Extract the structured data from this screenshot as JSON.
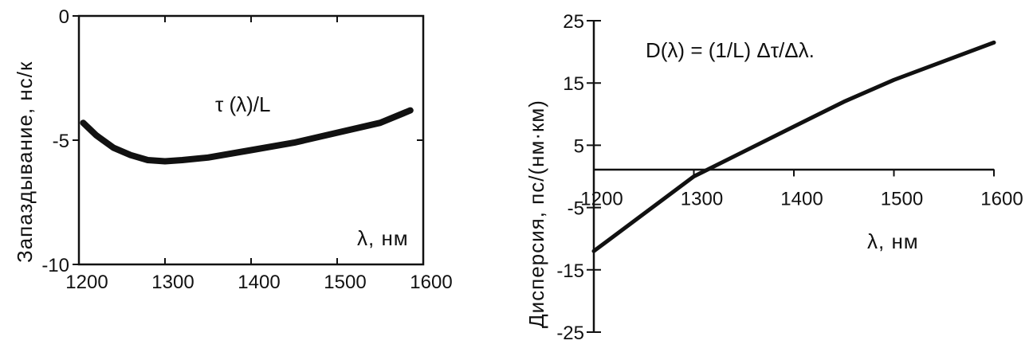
{
  "chart_data": [
    {
      "type": "line",
      "title": "",
      "xlabel": "λ, нм",
      "ylabel": "Запаздывание, нс/к",
      "xlim": [
        1200,
        1600
      ],
      "ylim": [
        -10,
        0
      ],
      "x_ticks": [
        1200,
        1300,
        1400,
        1500,
        1600
      ],
      "y_ticks": [
        0,
        -5,
        -10
      ],
      "grid": false,
      "annotation": "τ (λ)/L",
      "series": [
        {
          "x": [
            1205,
            1220,
            1240,
            1260,
            1280,
            1300,
            1320,
            1350,
            1400,
            1450,
            1500,
            1550,
            1585
          ],
          "y": [
            -4.3,
            -4.8,
            -5.3,
            -5.6,
            -5.8,
            -5.85,
            -5.8,
            -5.7,
            -5.4,
            -5.1,
            -4.7,
            -4.3,
            -3.8
          ]
        }
      ]
    },
    {
      "type": "line",
      "title": "",
      "xlabel": "λ, нм",
      "ylabel": "Дисперсия, пс/(нм·км)",
      "xlim": [
        1200,
        1600
      ],
      "ylim": [
        -25,
        25
      ],
      "x_ticks": [
        1200,
        1300,
        1400,
        1500,
        1600
      ],
      "y_ticks": [
        25,
        15,
        5,
        -5,
        -15,
        -25
      ],
      "grid": false,
      "zero_line": true,
      "annotation": "D(λ) = (1/L) Δτ/Δλ.",
      "series": [
        {
          "x": [
            1200,
            1250,
            1300,
            1350,
            1400,
            1450,
            1500,
            1550,
            1600
          ],
          "y": [
            -12,
            -6,
            0,
            4,
            8,
            12,
            15.5,
            18.5,
            21.5
          ]
        }
      ]
    }
  ]
}
